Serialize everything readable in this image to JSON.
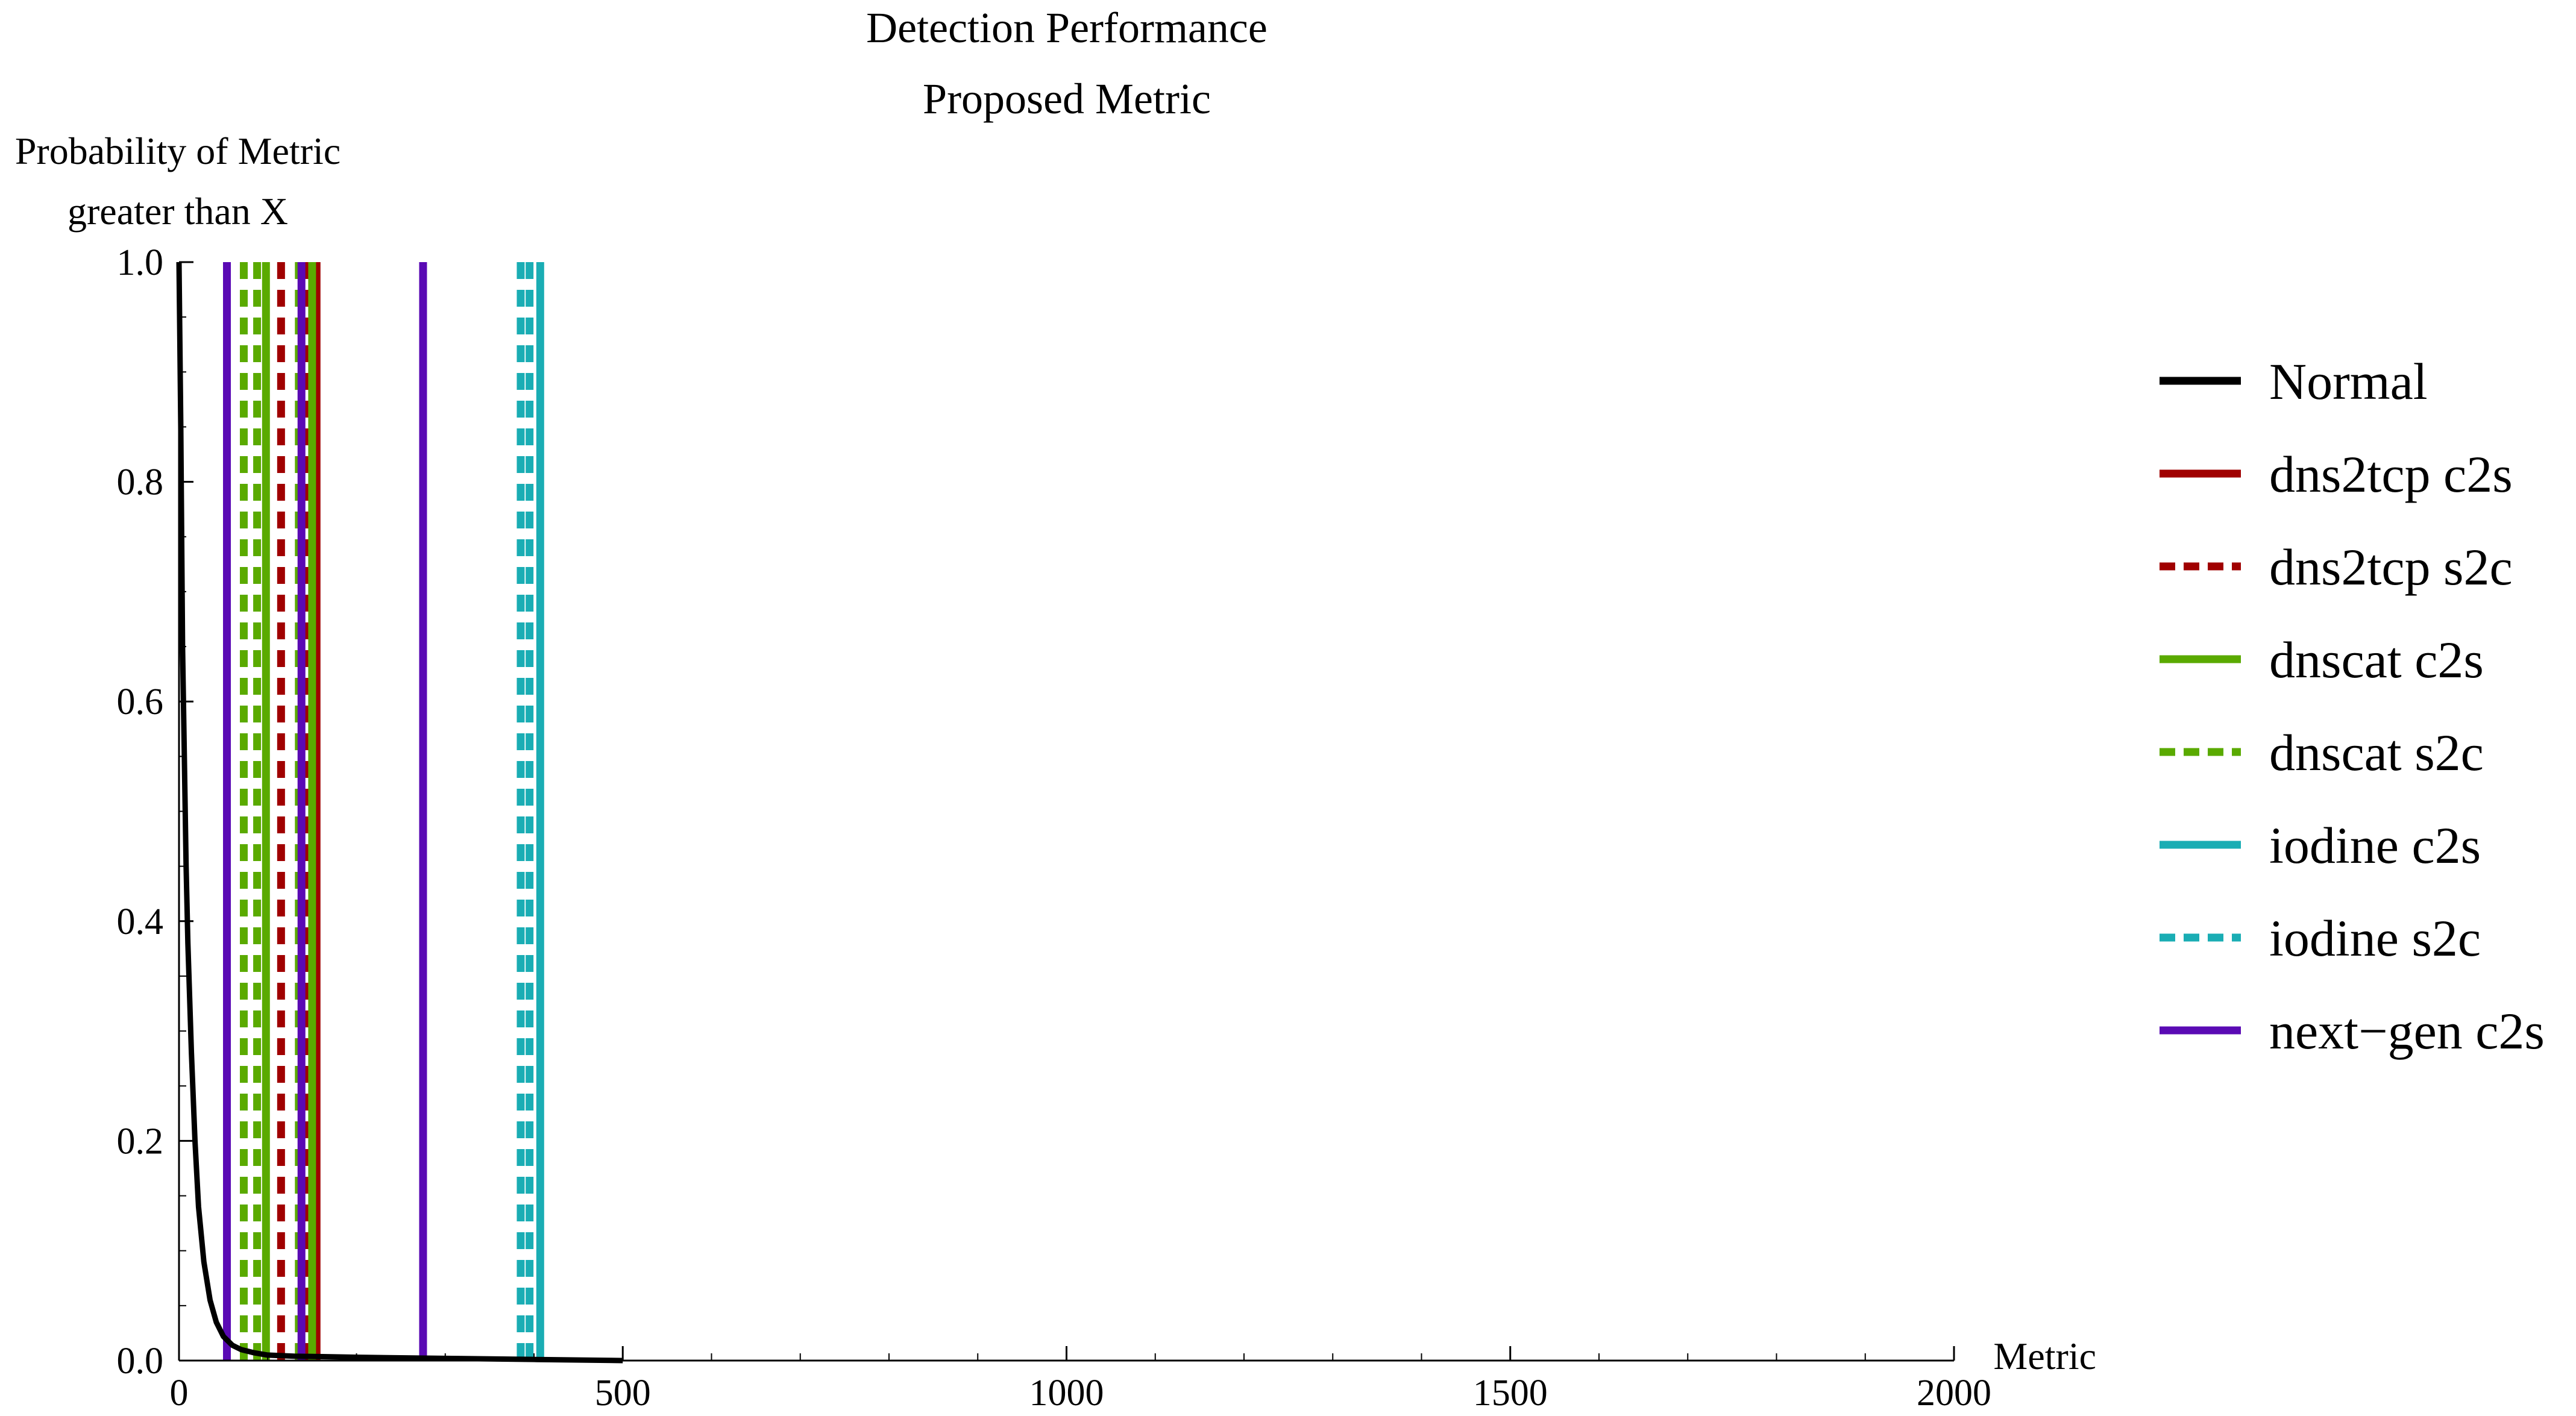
{
  "chart_data": {
    "type": "line",
    "title": "Detection Performance",
    "subtitle": "Proposed Metric",
    "ylabel_lines": [
      "Probability of Metric",
      "greater than X"
    ],
    "xlabel": "Metric",
    "xlim": [
      0,
      2000
    ],
    "ylim": [
      0,
      1
    ],
    "x_ticks": [
      0,
      500,
      1000,
      1500,
      2000
    ],
    "x_tick_labels": [
      "0",
      "500",
      "1000",
      "1500",
      "2000"
    ],
    "y_ticks": [
      0,
      0.2,
      0.4,
      0.6,
      0.8,
      1.0
    ],
    "y_tick_labels": [
      "0.0",
      "0.2",
      "0.4",
      "0.6",
      "0.8",
      "1.0"
    ],
    "grid": false,
    "legend_position": "right",
    "normal_curve": {
      "name": "Normal",
      "color": "#000000",
      "dash": "solid",
      "points": [
        [
          0,
          1.0
        ],
        [
          2,
          0.85
        ],
        [
          4,
          0.65
        ],
        [
          6,
          0.55
        ],
        [
          8,
          0.45
        ],
        [
          10,
          0.38
        ],
        [
          14,
          0.28
        ],
        [
          18,
          0.2
        ],
        [
          22,
          0.14
        ],
        [
          28,
          0.09
        ],
        [
          35,
          0.055
        ],
        [
          42,
          0.035
        ],
        [
          50,
          0.022
        ],
        [
          60,
          0.014
        ],
        [
          70,
          0.01
        ],
        [
          85,
          0.007
        ],
        [
          100,
          0.005
        ],
        [
          130,
          0.004
        ],
        [
          200,
          0.003
        ],
        [
          300,
          0.002
        ],
        [
          400,
          0.001
        ],
        [
          500,
          0.0
        ]
      ]
    },
    "series": [
      {
        "name": "dns2tcp c2s",
        "color": "#a00000",
        "dash": "solid",
        "x": [
          155
        ]
      },
      {
        "name": "dns2tcp s2c",
        "color": "#a00000",
        "dash": "dashed",
        "x": [
          115,
          142
        ]
      },
      {
        "name": "dnscat c2s",
        "color": "#5aaa00",
        "dash": "solid",
        "x": [
          98,
          150
        ]
      },
      {
        "name": "dnscat s2c",
        "color": "#5aaa00",
        "dash": "dashed",
        "x": [
          73,
          88,
          135
        ]
      },
      {
        "name": "iodine c2s",
        "color": "#1aadb4",
        "dash": "solid",
        "x": [
          407
        ]
      },
      {
        "name": "iodine s2c",
        "color": "#1aadb4",
        "dash": "dashed",
        "x": [
          385,
          395
        ]
      },
      {
        "name": "next-gen c2s",
        "color": "#5a0ab4",
        "dash": "solid",
        "x": [
          54,
          138,
          275
        ]
      }
    ],
    "legend_labels": [
      "Normal",
      "dns2tcp c2s",
      "dns2tcp s2c",
      "dnscat c2s",
      "dnscat s2c",
      "iodine c2s",
      "iodine s2c",
      "next−gen c2s"
    ]
  }
}
